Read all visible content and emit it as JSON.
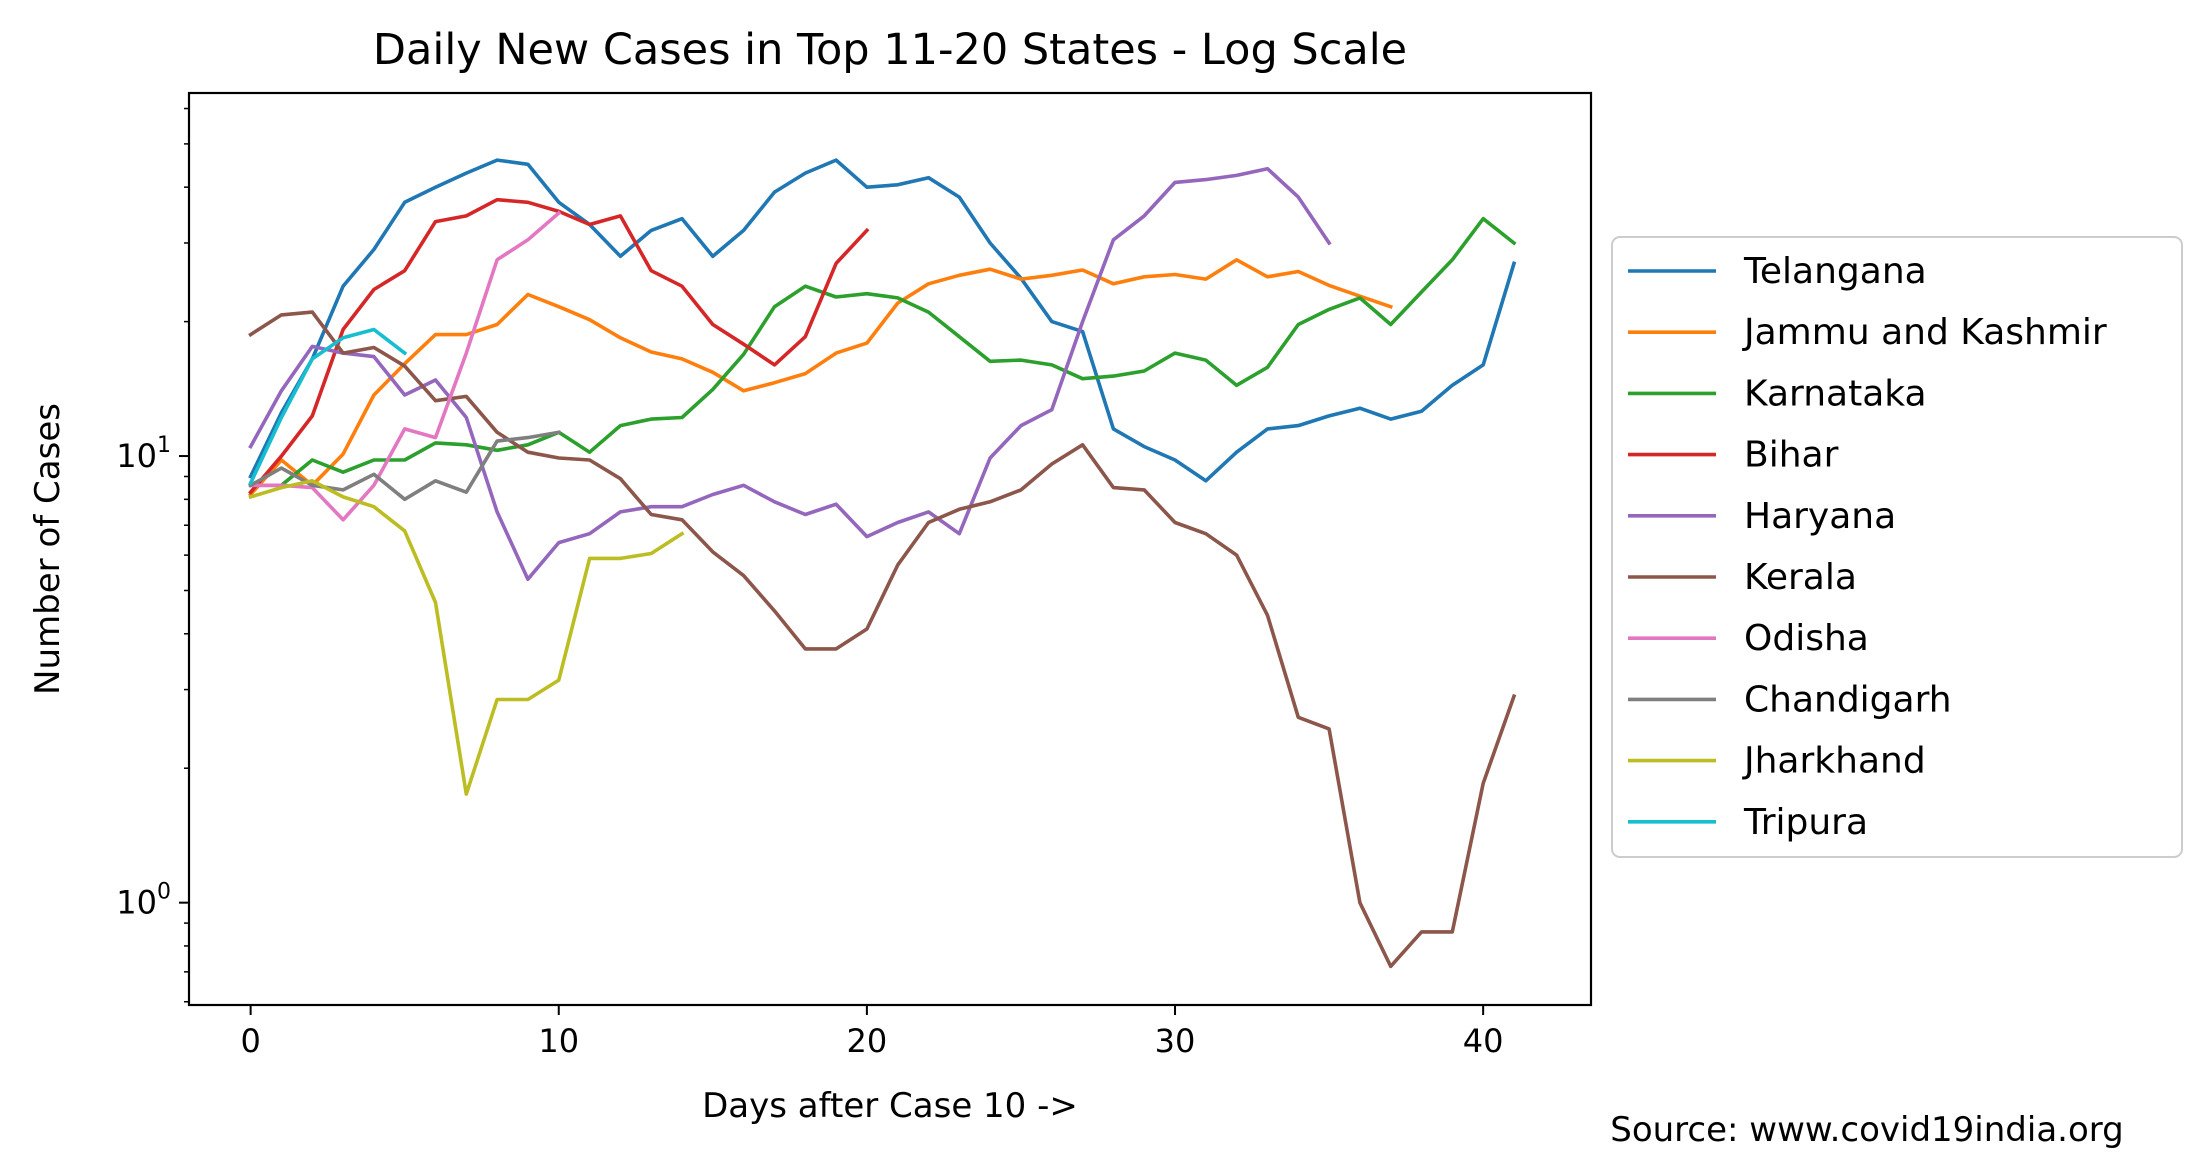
{
  "chart_data": {
    "type": "line",
    "title": "Daily New Cases in Top 11-20 States - Log Scale",
    "xlabel": "Days after Case 10 ->",
    "ylabel": "Number of Cases",
    "source": "Source: www.covid19india.org",
    "xlim": [
      -2,
      43.5
    ],
    "ylim": [
      0.59,
      65
    ],
    "yscale": "log",
    "x_ticks": [
      0,
      10,
      20,
      30,
      40
    ],
    "y_ticks": [
      {
        "value": 1,
        "base": "10",
        "exp": "0"
      },
      {
        "value": 10,
        "base": "10",
        "exp": "1"
      }
    ],
    "legend_position": "right",
    "series": [
      {
        "name": "Telangana",
        "color": "#1f77b4",
        "values": [
          9.0,
          12.5,
          16.5,
          24,
          29,
          37,
          40,
          43,
          46,
          45,
          37,
          33,
          28,
          32,
          34,
          28,
          32,
          39,
          43,
          46,
          40,
          40.5,
          42,
          38,
          30,
          25,
          20,
          19,
          11.5,
          10.5,
          9.8,
          8.8,
          10.2,
          11.5,
          11.7,
          12.3,
          12.8,
          12.1,
          12.6,
          14.4,
          16,
          27
        ]
      },
      {
        "name": "Jammu and Kashmir",
        "color": "#ff7f0e",
        "values": [
          8.2,
          9.8,
          8.6,
          10.1,
          13.7,
          16.1,
          18.7,
          18.7,
          19.7,
          23,
          21.6,
          20.2,
          18.4,
          17.1,
          16.5,
          15.4,
          14,
          14.6,
          15.3,
          17,
          17.9,
          22,
          24.3,
          25.4,
          26.2,
          24.9,
          25.4,
          26.1,
          24.3,
          25.2,
          25.5,
          24.9,
          27.5,
          25.2,
          25.9,
          24.1,
          22.8,
          21.6
        ]
      },
      {
        "name": "Karnataka",
        "color": "#2ca02c",
        "values": [
          8.6,
          8.6,
          9.8,
          9.2,
          9.8,
          9.8,
          10.7,
          10.6,
          10.3,
          10.6,
          11.3,
          10.2,
          11.7,
          12.1,
          12.2,
          14.1,
          16.9,
          21.6,
          24,
          22.7,
          23.1,
          22.6,
          21,
          18.5,
          16.3,
          16.4,
          16,
          14.9,
          15.1,
          15.5,
          17,
          16.4,
          14.4,
          15.8,
          19.7,
          21.3,
          22.6,
          19.7,
          23.3,
          27.5,
          34,
          30
        ]
      },
      {
        "name": "Bihar",
        "color": "#d62728",
        "values": [
          8.3,
          10,
          12.3,
          19.2,
          23.6,
          26,
          33.5,
          34.5,
          37.5,
          37,
          35.3,
          33,
          34.5,
          26,
          24,
          19.7,
          17.8,
          16,
          18.5,
          27,
          32
        ]
      },
      {
        "name": "Haryana",
        "color": "#9467bd",
        "values": [
          10.5,
          14,
          17.6,
          17,
          16.7,
          13.7,
          14.8,
          12.2,
          7.5,
          5.3,
          6.4,
          6.7,
          7.5,
          7.7,
          7.7,
          8.2,
          8.6,
          7.9,
          7.4,
          7.8,
          6.6,
          7.1,
          7.5,
          6.7,
          9.9,
          11.7,
          12.7,
          20,
          30.5,
          34.5,
          41,
          41.6,
          42.5,
          44,
          38,
          30
        ]
      },
      {
        "name": "Kerala",
        "color": "#8c564b",
        "values": [
          18.7,
          20.7,
          21,
          17,
          17.5,
          15.9,
          13.3,
          13.6,
          11.3,
          10.2,
          9.9,
          9.8,
          8.9,
          7.4,
          7.2,
          6.1,
          5.4,
          4.5,
          3.7,
          3.7,
          4.1,
          5.7,
          7.1,
          7.6,
          7.9,
          8.4,
          9.6,
          10.6,
          8.5,
          8.4,
          7.1,
          6.7,
          6,
          4.4,
          2.6,
          2.45,
          1.0,
          0.72,
          0.86,
          0.86,
          1.85,
          2.9
        ]
      },
      {
        "name": "Odisha",
        "color": "#e377c2",
        "values": [
          8.6,
          8.6,
          8.5,
          7.2,
          8.6,
          11.5,
          11,
          17,
          27.5,
          30.5,
          35
        ]
      },
      {
        "name": "Chandigarh",
        "color": "#7f7f7f",
        "values": [
          8.6,
          9.4,
          8.6,
          8.4,
          9.1,
          8,
          8.8,
          8.3,
          10.8,
          11,
          11.3
        ]
      },
      {
        "name": "Jharkhand",
        "color": "#bcbd22",
        "values": [
          8.1,
          8.5,
          8.8,
          8.1,
          7.7,
          6.8,
          4.7,
          1.75,
          2.85,
          2.85,
          3.15,
          5.9,
          5.9,
          6.05,
          6.7
        ]
      },
      {
        "name": "Tripura",
        "color": "#17becf",
        "values": [
          8.7,
          12.2,
          16.5,
          18.4,
          19.2,
          17
        ]
      }
    ]
  }
}
